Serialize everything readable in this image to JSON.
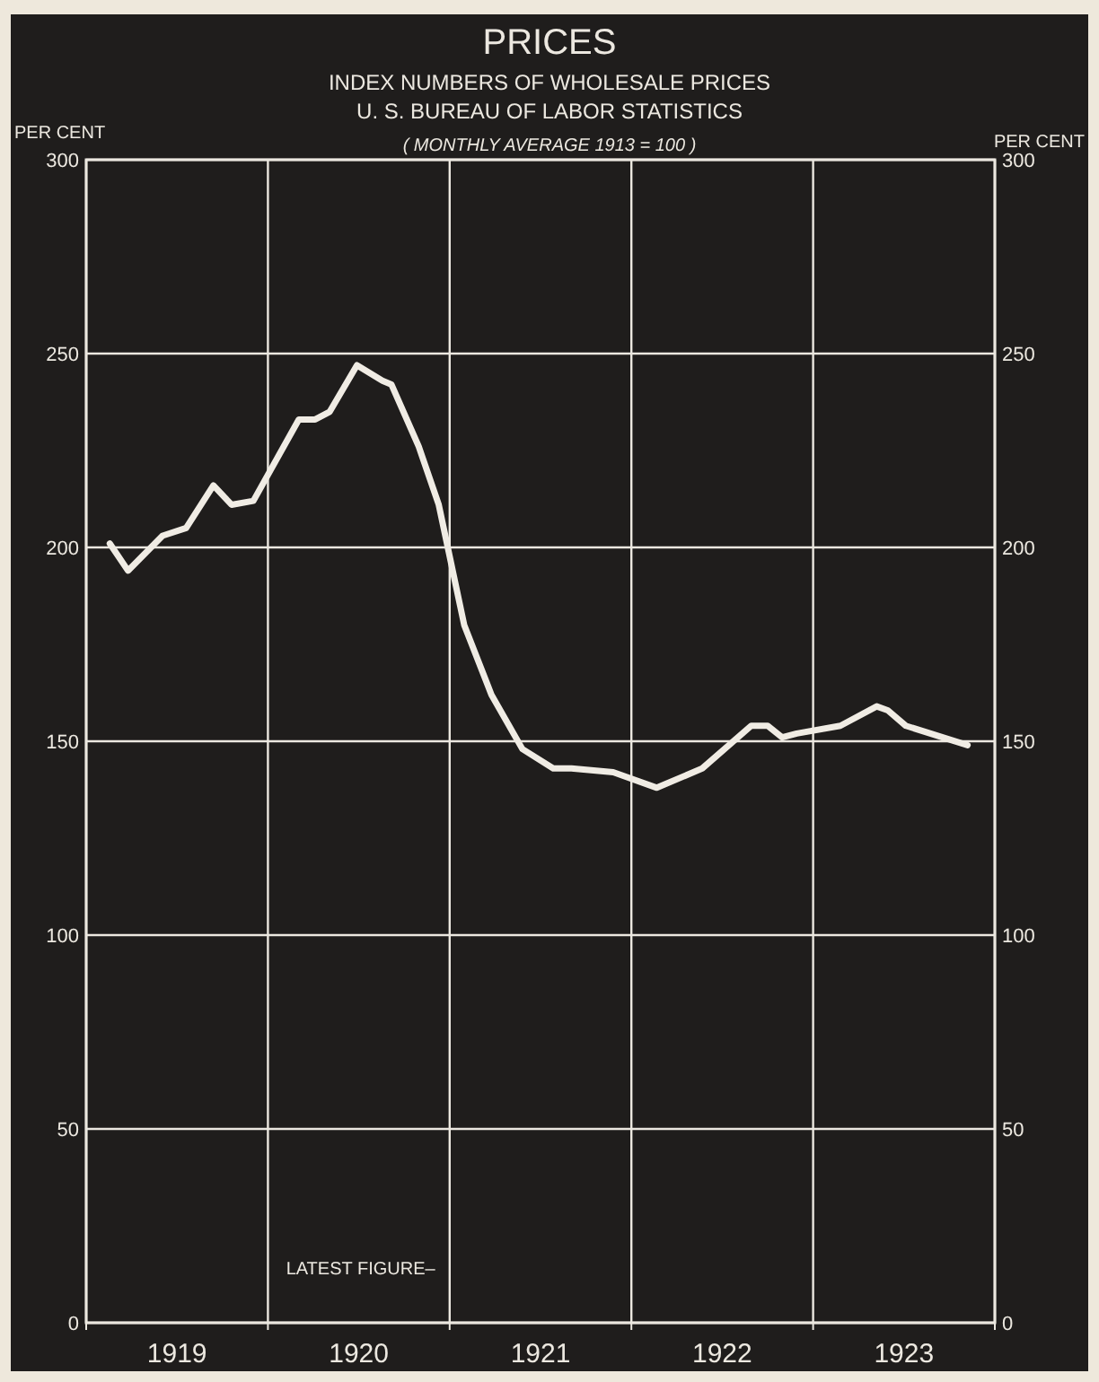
{
  "chart_data": {
    "type": "line",
    "title": "PRICES",
    "subtitle": "INDEX NUMBERS OF WHOLESALE PRICES\nU. S. BUREAU OF LABOR STATISTICS",
    "ylabel": "PER CENT",
    "y2label": "PER CENT",
    "annotations": [
      "( MONTHLY AVERAGE 1913 = 100 )",
      "LATEST FIGURE–"
    ],
    "x": [
      1919.13,
      1919.23,
      1919.42,
      1919.55,
      1919.7,
      1919.8,
      1919.92,
      1920.17,
      1920.26,
      1920.34,
      1920.49,
      1920.63,
      1920.68,
      1920.83,
      1920.94,
      1921.08,
      1921.23,
      1921.4,
      1921.57,
      1921.67,
      1921.9,
      1922.14,
      1922.39,
      1922.66,
      1922.75,
      1922.83,
      1922.91,
      1923.15,
      1923.35,
      1923.41,
      1923.51,
      1923.85
    ],
    "series": [
      {
        "color": "#f0ece4",
        "values": [
          201,
          194,
          203,
          205,
          216,
          211,
          212,
          233,
          233,
          235,
          247,
          243,
          242,
          226,
          211,
          180,
          162,
          148,
          143,
          143,
          142,
          138,
          143,
          154,
          154,
          151,
          152,
          154,
          159,
          158,
          154,
          149
        ]
      }
    ],
    "xlim": [
      1919,
      1924
    ],
    "xticks": [
      {
        "value": 1919,
        "label": null
      },
      {
        "value": 1919.5,
        "label": "1919"
      },
      {
        "value": 1920,
        "label": null
      },
      {
        "value": 1920.5,
        "label": "1920"
      },
      {
        "value": 1921,
        "label": null
      },
      {
        "value": 1921.5,
        "label": "1921"
      },
      {
        "value": 1922,
        "label": null
      },
      {
        "value": 1922.5,
        "label": "1922"
      },
      {
        "value": 1923,
        "label": null
      },
      {
        "value": 1923.5,
        "label": "1923"
      },
      {
        "value": 1924,
        "label": null
      }
    ],
    "ylim": [
      0,
      300
    ],
    "yticks": [
      0,
      50,
      100,
      150,
      200,
      250,
      300
    ],
    "y2lim": [
      0,
      300
    ],
    "y2ticks": [
      0,
      50,
      100,
      150,
      200,
      250,
      300
    ],
    "grid": true,
    "line_style": "solid",
    "marker": "none"
  }
}
